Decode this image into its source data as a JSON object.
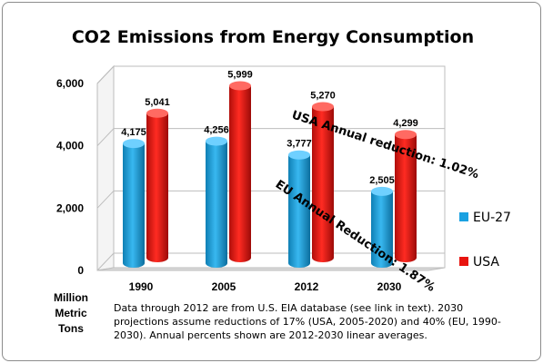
{
  "chart_data": {
    "type": "bar",
    "title": "CO2 Emissions from Energy Consumption",
    "categories": [
      "1990",
      "2005",
      "2012",
      "2030"
    ],
    "series": [
      {
        "name": "EU-27",
        "values": [
          4175,
          4256,
          3777,
          2505
        ],
        "labels": [
          "4,175",
          "4,256",
          "3,777",
          "2,505"
        ],
        "color": "#1aa1e1"
      },
      {
        "name": "USA",
        "values": [
          5041,
          5999,
          5270,
          4299
        ],
        "labels": [
          "5,041",
          "5,999",
          "5,270",
          "4,299"
        ],
        "color": "#e8140f"
      }
    ],
    "ylabel_lines": [
      "Million",
      "Metric",
      "Tons"
    ],
    "yticks": [
      0,
      2000,
      4000,
      6000
    ],
    "ytick_labels": [
      "0",
      "2,000",
      "4,000",
      "6,000"
    ],
    "ylim": [
      0,
      6000
    ],
    "grid": true,
    "legend_position": "right",
    "annotations": {
      "usa": "USA Annual reduction: 1.02%",
      "eu": "EU Annual Reduction: 1.87%"
    },
    "note": "Data through 2012  are from U.S. EIA database (see  link in text). 2030 projections  assume reductions of 17% (USA, 2005-2020)  and 40% (EU, 1990-2030).  Annual percents shown are 2012-2030  linear averages."
  }
}
